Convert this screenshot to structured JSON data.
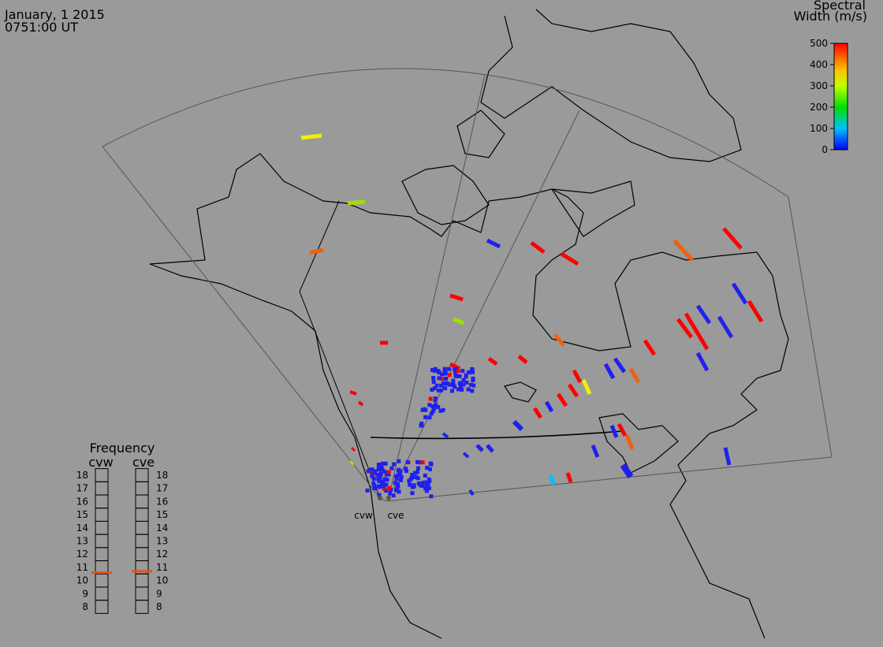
{
  "header": {
    "date": "January, 1 2015",
    "time": "0751:00 UT"
  },
  "colorbar": {
    "title_line1": "Spectral",
    "title_line2": "Width (m/s)",
    "ticks": [
      0,
      100,
      200,
      300,
      400,
      500
    ],
    "range": [
      0,
      500
    ]
  },
  "frequency_panel": {
    "title": "Frequency",
    "left_label": "cvw",
    "right_label": "cve",
    "ticks": [
      18,
      17,
      16,
      15,
      14,
      13,
      12,
      11,
      10,
      9,
      8
    ],
    "range": [
      8,
      18
    ],
    "cvw": 10.6,
    "cve": 10.7,
    "color": "#e8501a"
  },
  "stations": [
    "cvw",
    "cve"
  ]
}
